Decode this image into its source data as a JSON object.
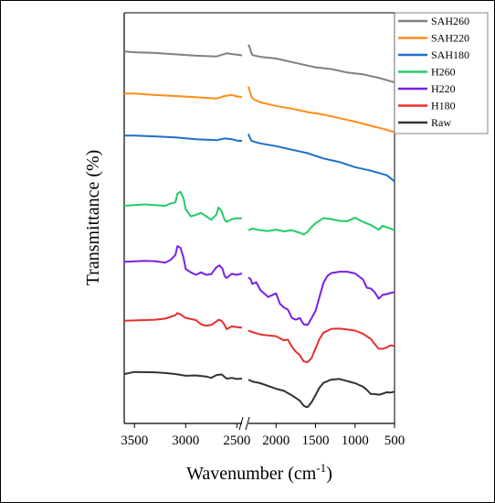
{
  "chart_data": {
    "type": "line",
    "title": "",
    "xlabel": "Wavenumber (cm",
    "xlabel_sup": "-1",
    "xlabel_close": ")",
    "ylabel": "Transmittance (%)",
    "x_reversed": true,
    "axis_break": [
      2350,
      2450
    ],
    "xticks": [
      {
        "value": 3500,
        "label": "3500"
      },
      {
        "value": 3000,
        "label": "3000"
      },
      {
        "value": 2500,
        "label": "2500"
      },
      {
        "value": 2000,
        "label": "2000"
      },
      {
        "value": 1500,
        "label": "1500"
      },
      {
        "value": 1000,
        "label": "1000"
      },
      {
        "value": 500,
        "label": "500"
      }
    ],
    "legend_position": "top-right",
    "grid": false,
    "series": [
      {
        "name": "SAH260",
        "color": "#808080",
        "points": [
          [
            3600,
            92
          ],
          [
            3500,
            91.8
          ],
          [
            3300,
            91.6
          ],
          [
            3100,
            91.2
          ],
          [
            2900,
            90.8
          ],
          [
            2700,
            90.6
          ],
          [
            2600,
            91.5
          ],
          [
            2500,
            91.1
          ],
          [
            2450,
            90.9
          ],
          [
            2350,
            94
          ],
          [
            2330,
            93
          ],
          [
            2320,
            92
          ],
          [
            2300,
            91
          ],
          [
            2200,
            90.5
          ],
          [
            2000,
            90
          ],
          [
            1700,
            88.5
          ],
          [
            1500,
            87.5
          ],
          [
            1300,
            87
          ],
          [
            1100,
            86
          ],
          [
            900,
            85.5
          ],
          [
            700,
            84.5
          ],
          [
            500,
            83.2
          ]
        ]
      },
      {
        "name": "SAH220",
        "color": "#ff8c1a",
        "points": [
          [
            3600,
            80
          ],
          [
            3500,
            80
          ],
          [
            3300,
            79.6
          ],
          [
            3100,
            79.3
          ],
          [
            2900,
            79
          ],
          [
            2700,
            78.6
          ],
          [
            2620,
            79.3
          ],
          [
            2550,
            79.6
          ],
          [
            2500,
            79.2
          ],
          [
            2450,
            79
          ],
          [
            2350,
            82
          ],
          [
            2330,
            80.5
          ],
          [
            2310,
            79
          ],
          [
            2290,
            78.5
          ],
          [
            2200,
            77.5
          ],
          [
            2000,
            76.5
          ],
          [
            1800,
            75.7
          ],
          [
            1600,
            74.7
          ],
          [
            1400,
            74
          ],
          [
            1200,
            73
          ],
          [
            1000,
            72
          ],
          [
            800,
            70.8
          ],
          [
            650,
            70
          ],
          [
            500,
            69
          ]
        ]
      },
      {
        "name": "SAH180",
        "color": "#1f6fcc",
        "points": [
          [
            3600,
            68
          ],
          [
            3500,
            68
          ],
          [
            3300,
            67.8
          ],
          [
            3100,
            67.5
          ],
          [
            2900,
            67
          ],
          [
            2700,
            66.7
          ],
          [
            2620,
            67.2
          ],
          [
            2550,
            67
          ],
          [
            2500,
            66.6
          ],
          [
            2450,
            66.5
          ],
          [
            2350,
            68.5
          ],
          [
            2330,
            67.3
          ],
          [
            2310,
            66.5
          ],
          [
            2200,
            65.8
          ],
          [
            2000,
            65
          ],
          [
            1800,
            64
          ],
          [
            1600,
            63
          ],
          [
            1400,
            61.5
          ],
          [
            1200,
            60.5
          ],
          [
            1000,
            59
          ],
          [
            800,
            58
          ],
          [
            600,
            56.7
          ],
          [
            500,
            55
          ]
        ]
      },
      {
        "name": "H260",
        "color": "#22cc66",
        "points": [
          [
            3600,
            48
          ],
          [
            3400,
            48.4
          ],
          [
            3300,
            48.2
          ],
          [
            3200,
            48
          ],
          [
            3150,
            48.6
          ],
          [
            3100,
            49
          ],
          [
            3080,
            51.5
          ],
          [
            3050,
            52
          ],
          [
            3020,
            50
          ],
          [
            3000,
            47
          ],
          [
            2950,
            45
          ],
          [
            2900,
            45.4
          ],
          [
            2850,
            46
          ],
          [
            2800,
            45
          ],
          [
            2750,
            44
          ],
          [
            2700,
            45.5
          ],
          [
            2680,
            47.5
          ],
          [
            2650,
            46.5
          ],
          [
            2620,
            44
          ],
          [
            2600,
            43.4
          ],
          [
            2550,
            44.2
          ],
          [
            2500,
            44.4
          ],
          [
            2450,
            44.4
          ],
          [
            2350,
            41
          ],
          [
            2300,
            41.5
          ],
          [
            2200,
            41
          ],
          [
            2100,
            40.8
          ],
          [
            2000,
            41.2
          ],
          [
            1900,
            40.7
          ],
          [
            1800,
            41
          ],
          [
            1700,
            40.3
          ],
          [
            1650,
            39.8
          ],
          [
            1600,
            40.6
          ],
          [
            1550,
            42
          ],
          [
            1500,
            43
          ],
          [
            1400,
            44.5
          ],
          [
            1300,
            44.2
          ],
          [
            1200,
            43.7
          ],
          [
            1100,
            43.6
          ],
          [
            1000,
            44.6
          ],
          [
            900,
            43.4
          ],
          [
            800,
            42.5
          ],
          [
            700,
            41.2
          ],
          [
            650,
            42.3
          ],
          [
            550,
            41.5
          ],
          [
            500,
            41
          ]
        ]
      },
      {
        "name": "H220",
        "color": "#7a1fe6",
        "points": [
          [
            3600,
            32
          ],
          [
            3400,
            32.3
          ],
          [
            3300,
            32.2
          ],
          [
            3200,
            31.8
          ],
          [
            3150,
            32.5
          ],
          [
            3100,
            34
          ],
          [
            3080,
            36.5
          ],
          [
            3050,
            36
          ],
          [
            3020,
            33
          ],
          [
            3000,
            30
          ],
          [
            2950,
            29
          ],
          [
            2900,
            28.3
          ],
          [
            2850,
            29
          ],
          [
            2800,
            28.3
          ],
          [
            2750,
            28.5
          ],
          [
            2700,
            30.5
          ],
          [
            2670,
            31
          ],
          [
            2640,
            30
          ],
          [
            2620,
            28
          ],
          [
            2600,
            27.4
          ],
          [
            2550,
            28.6
          ],
          [
            2500,
            28.3
          ],
          [
            2450,
            28.7
          ],
          [
            2350,
            27.6
          ],
          [
            2320,
            27
          ],
          [
            2300,
            25.7
          ],
          [
            2250,
            26.2
          ],
          [
            2200,
            24
          ],
          [
            2100,
            22
          ],
          [
            2000,
            23
          ],
          [
            1950,
            20
          ],
          [
            1900,
            19
          ],
          [
            1850,
            18.4
          ],
          [
            1800,
            16
          ],
          [
            1750,
            15.5
          ],
          [
            1700,
            16
          ],
          [
            1650,
            14.2
          ],
          [
            1600,
            14
          ],
          [
            1550,
            16
          ],
          [
            1500,
            18
          ],
          [
            1450,
            22
          ],
          [
            1400,
            26
          ],
          [
            1350,
            28
          ],
          [
            1300,
            28.8
          ],
          [
            1200,
            29.2
          ],
          [
            1100,
            29.2
          ],
          [
            1000,
            28.7
          ],
          [
            900,
            27
          ],
          [
            850,
            24.6
          ],
          [
            800,
            24.4
          ],
          [
            750,
            23.3
          ],
          [
            700,
            21.5
          ],
          [
            650,
            22.6
          ],
          [
            600,
            22.8
          ],
          [
            550,
            23.1
          ],
          [
            500,
            23.4
          ]
        ]
      },
      {
        "name": "H180",
        "color": "#e62e2e",
        "points": [
          [
            3600,
            15.2
          ],
          [
            3400,
            15.4
          ],
          [
            3300,
            15.5
          ],
          [
            3200,
            15.8
          ],
          [
            3150,
            16.3
          ],
          [
            3100,
            16.8
          ],
          [
            3080,
            17.4
          ],
          [
            3050,
            17
          ],
          [
            3000,
            16
          ],
          [
            2900,
            15.4
          ],
          [
            2850,
            14.2
          ],
          [
            2800,
            13.8
          ],
          [
            2750,
            14
          ],
          [
            2700,
            15
          ],
          [
            2680,
            15.5
          ],
          [
            2650,
            15.2
          ],
          [
            2620,
            14
          ],
          [
            2600,
            12.8
          ],
          [
            2550,
            13.6
          ],
          [
            2500,
            13.4
          ],
          [
            2450,
            13.2
          ],
          [
            2350,
            12.4
          ],
          [
            2300,
            12
          ],
          [
            2200,
            11.3
          ],
          [
            2100,
            11
          ],
          [
            2000,
            10.8
          ],
          [
            1900,
            9.6
          ],
          [
            1850,
            9.8
          ],
          [
            1800,
            7.8
          ],
          [
            1750,
            6.4
          ],
          [
            1700,
            5.4
          ],
          [
            1650,
            3.6
          ],
          [
            1600,
            3.4
          ],
          [
            1550,
            4.6
          ],
          [
            1500,
            7.3
          ],
          [
            1450,
            10
          ],
          [
            1400,
            11.8
          ],
          [
            1300,
            12.9
          ],
          [
            1200,
            13
          ],
          [
            1100,
            12.7
          ],
          [
            1000,
            12.4
          ],
          [
            900,
            11.5
          ],
          [
            800,
            10
          ],
          [
            750,
            8.5
          ],
          [
            700,
            7.2
          ],
          [
            650,
            7.2
          ],
          [
            600,
            7.6
          ],
          [
            550,
            8.2
          ],
          [
            500,
            8
          ]
        ]
      },
      {
        "name": "Raw",
        "color": "#333333",
        "points": [
          [
            3600,
            0
          ],
          [
            3500,
            0.6
          ],
          [
            3300,
            0.5
          ],
          [
            3200,
            0.3
          ],
          [
            3100,
            0
          ],
          [
            3000,
            -0.5
          ],
          [
            2900,
            -0.4
          ],
          [
            2800,
            -0.7
          ],
          [
            2750,
            -1.1
          ],
          [
            2700,
            -0.3
          ],
          [
            2650,
            -0.1
          ],
          [
            2600,
            -1.3
          ],
          [
            2550,
            -1.1
          ],
          [
            2500,
            -1.4
          ],
          [
            2450,
            -1.3
          ],
          [
            2350,
            -1.6
          ],
          [
            2300,
            -2.1
          ],
          [
            2200,
            -2.6
          ],
          [
            2100,
            -3.4
          ],
          [
            2000,
            -4.2
          ],
          [
            1900,
            -4.8
          ],
          [
            1800,
            -6.1
          ],
          [
            1750,
            -6.8
          ],
          [
            1700,
            -7.6
          ],
          [
            1650,
            -9
          ],
          [
            1620,
            -9.4
          ],
          [
            1600,
            -9.4
          ],
          [
            1550,
            -8
          ],
          [
            1500,
            -6
          ],
          [
            1450,
            -3.9
          ],
          [
            1400,
            -2.5
          ],
          [
            1300,
            -1.6
          ],
          [
            1200,
            -1.4
          ],
          [
            1100,
            -2
          ],
          [
            1000,
            -2.6
          ],
          [
            900,
            -3.6
          ],
          [
            850,
            -4.5
          ],
          [
            800,
            -5.7
          ],
          [
            750,
            -5.7
          ],
          [
            700,
            -5.9
          ],
          [
            650,
            -5.6
          ],
          [
            600,
            -5.2
          ],
          [
            550,
            -5.3
          ],
          [
            500,
            -5
          ]
        ]
      }
    ],
    "ylim": [
      -12,
      102
    ],
    "xlim": [
      3600,
      500
    ]
  }
}
